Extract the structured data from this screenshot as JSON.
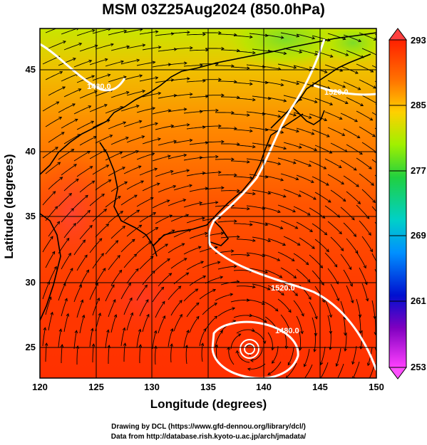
{
  "title": "MSM 03Z25Aug2024 (850.0hPa)",
  "axes": {
    "xlabel": "Longitude (degrees)",
    "ylabel": "Latitude  (degrees)",
    "xticks": [
      "120",
      "125",
      "130",
      "135",
      "140",
      "145",
      "150"
    ],
    "yticks": [
      "25",
      "30",
      "35",
      "40",
      "45"
    ]
  },
  "colorbar": {
    "ticks": [
      "293",
      "285",
      "277",
      "269",
      "261",
      "253"
    ],
    "colors": [
      "#ff1a00",
      "#ff6a00",
      "#ffc800",
      "#c8ff00",
      "#32d232",
      "#00c8c8",
      "#0064ff",
      "#0000b4",
      "#c800c8",
      "#ff3cff"
    ]
  },
  "contour_labels": [
    "1480.0",
    "1520.0",
    "1520.0",
    "1480.0"
  ],
  "credits": {
    "line1": "Drawing by DCL (https://www.gfd-dennou.org/library/dcl/)",
    "line2": "Data from http://database.rish.kyoto-u.ac.jp/arch/jmadata/"
  }
}
